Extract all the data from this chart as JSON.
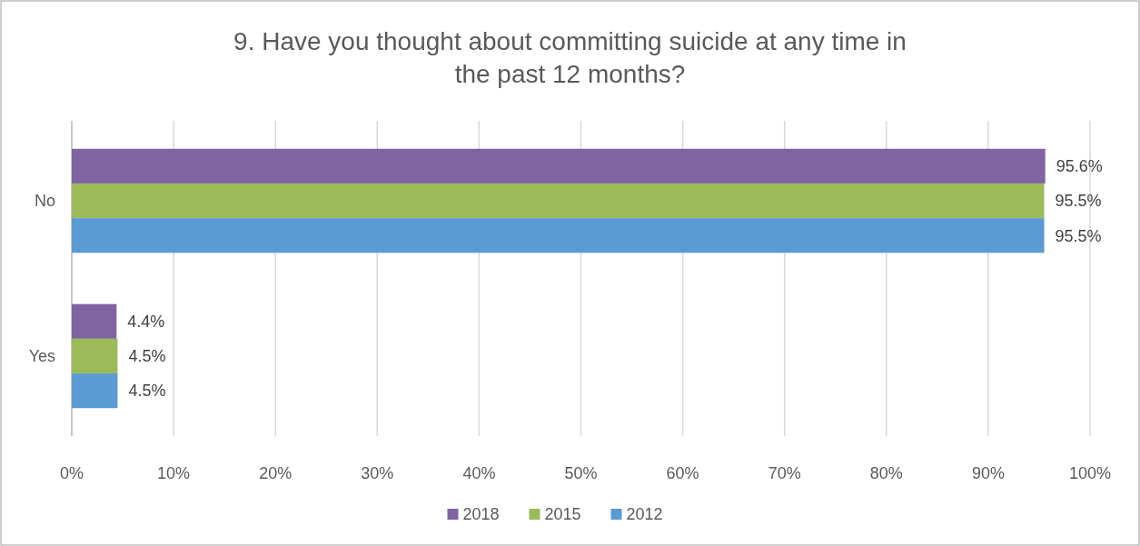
{
  "chart_data": {
    "type": "bar",
    "orientation": "horizontal",
    "title": "9. Have you thought about committing suicide at any time in the past 12 months?",
    "categories": [
      "No",
      "Yes"
    ],
    "series": [
      {
        "name": "2018",
        "color": "#8064a2",
        "values": [
          95.6,
          4.4
        ],
        "value_labels": [
          "95.6%",
          "4.4%"
        ]
      },
      {
        "name": "2015",
        "color": "#9bbb59",
        "values": [
          95.5,
          4.5
        ],
        "value_labels": [
          "95.5%",
          "4.5%"
        ]
      },
      {
        "name": "2012",
        "color": "#5b9bd5",
        "values": [
          95.5,
          4.5
        ],
        "value_labels": [
          "95.5%",
          "4.5%"
        ]
      }
    ],
    "xlim": [
      0,
      100
    ],
    "xticks": [
      {
        "value": 0,
        "label": "0%"
      },
      {
        "value": 10,
        "label": "10%"
      },
      {
        "value": 20,
        "label": "20%"
      },
      {
        "value": 30,
        "label": "30%"
      },
      {
        "value": 40,
        "label": "40%"
      },
      {
        "value": 50,
        "label": "50%"
      },
      {
        "value": 60,
        "label": "60%"
      },
      {
        "value": 70,
        "label": "70%"
      },
      {
        "value": 80,
        "label": "80%"
      },
      {
        "value": 90,
        "label": "90%"
      },
      {
        "value": 100,
        "label": "100%"
      }
    ],
    "grid": "x",
    "legend": "bottom"
  }
}
